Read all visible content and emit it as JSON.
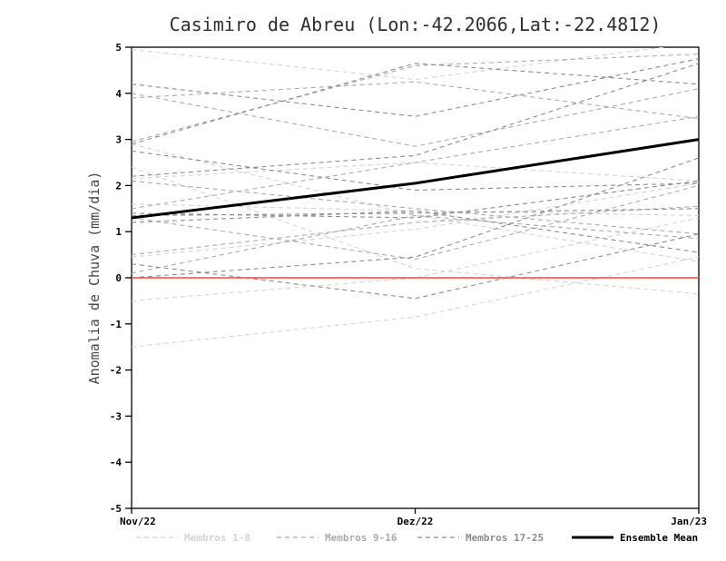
{
  "title": "Casimiro de Abreu (Lon:-42.2066,Lat:-22.4812)",
  "chart_data": {
    "type": "line",
    "title": "Casimiro de Abreu (Lon:-42.2066,Lat:-22.4812)",
    "ylabel": "Anomalia de Chuva (mm/dia)",
    "xlabel": "",
    "x_categories": [
      "Nov/22",
      "Dez/22",
      "Jan/23"
    ],
    "ylim": [
      -5,
      5
    ],
    "yticks": [
      5,
      4,
      3,
      2,
      1,
      0,
      -1,
      -2,
      -3,
      -4,
      -5
    ],
    "grid": false,
    "legend_position": "bottom",
    "zero_line": {
      "value": 0,
      "color": "#ff4438"
    },
    "line_style_members": "dashed",
    "groups": [
      {
        "name": "Membros 1-8",
        "color": "#d4d4d4",
        "style": "dashed",
        "members": [
          [
            4.95,
            4.3,
            5.1
          ],
          [
            2.9,
            1.35,
            0.35
          ],
          [
            2.4,
            0.2,
            -0.35
          ],
          [
            -1.5,
            -0.85,
            0.45
          ],
          [
            -0.5,
            0.0,
            1.3
          ],
          [
            0.45,
            1.05,
            2.05
          ],
          [
            1.6,
            1.45,
            1.35
          ],
          [
            2.15,
            2.5,
            2.1
          ]
        ]
      },
      {
        "name": "Membros 9-16",
        "color": "#ababab",
        "style": "dashed",
        "members": [
          [
            4.0,
            2.85,
            4.1
          ],
          [
            2.95,
            4.6,
            4.85
          ],
          [
            1.5,
            2.5,
            3.5
          ],
          [
            0.1,
            1.35,
            0.85
          ],
          [
            1.3,
            0.4,
            2.0
          ],
          [
            2.1,
            1.5,
            0.95
          ],
          [
            0.5,
            1.2,
            1.55
          ],
          [
            3.9,
            4.25,
            3.45
          ]
        ]
      },
      {
        "name": "Membros 17-25",
        "color": "#8c8c8c",
        "style": "dashed",
        "members": [
          [
            2.9,
            4.65,
            4.2
          ],
          [
            4.2,
            3.5,
            4.75
          ],
          [
            1.4,
            1.3,
            2.1
          ],
          [
            0.3,
            -0.45,
            0.95
          ],
          [
            1.2,
            1.45,
            0.55
          ],
          [
            2.2,
            2.65,
            4.65
          ],
          [
            0.0,
            0.45,
            2.6
          ],
          [
            1.35,
            1.4,
            1.5
          ],
          [
            2.75,
            1.9,
            2.05
          ]
        ]
      }
    ],
    "mean": {
      "name": "Ensemble Mean",
      "color": "#000000",
      "style": "solid",
      "values": [
        1.3,
        2.05,
        3.0
      ]
    }
  },
  "legend": {
    "items": [
      "Membros 1-8",
      "Membros 9-16",
      "Membros 17-25",
      "Ensemble Mean"
    ]
  },
  "colors": {
    "background": "#ffffff",
    "frame": "#000000",
    "zero_line": "#ff4438",
    "group_1_8": "#d4d4d4",
    "group_9_16": "#ababab",
    "group_17_25": "#8c8c8c",
    "ensemble_mean": "#000000"
  }
}
